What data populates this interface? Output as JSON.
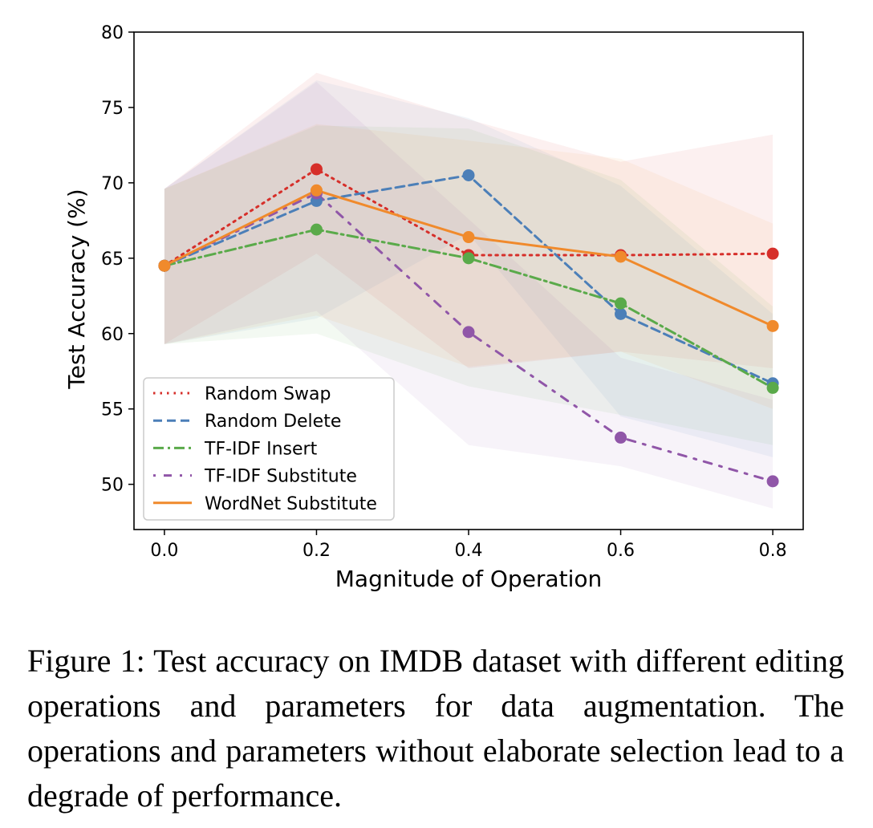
{
  "chart_data": {
    "type": "line",
    "xlabel": "Magnitude of Operation",
    "ylabel": "Test Accuracy (%)",
    "xlim": [
      -0.04,
      0.84
    ],
    "ylim": [
      47,
      80
    ],
    "x": [
      0.0,
      0.2,
      0.4,
      0.6,
      0.8
    ],
    "x_tick_labels": [
      "0.0",
      "0.2",
      "0.4",
      "0.6",
      "0.8"
    ],
    "y_ticks": [
      50,
      55,
      60,
      65,
      70,
      75,
      80
    ],
    "y_tick_labels": [
      "50",
      "55",
      "60",
      "65",
      "70",
      "75",
      "80"
    ],
    "grid": false,
    "legend_position": "lower-left",
    "series": [
      {
        "name": "Random Swap",
        "color": "#d62f2a",
        "dash": "dotted",
        "values": [
          64.5,
          70.9,
          65.2,
          65.2,
          65.3
        ],
        "upper": [
          69.6,
          77.3,
          74.2,
          71.4,
          73.2
        ],
        "lower": [
          59.3,
          65.3,
          57.7,
          58.8,
          57.7
        ]
      },
      {
        "name": "Random Delete",
        "color": "#4c7fb8",
        "dash": "dashed",
        "values": [
          64.5,
          68.8,
          70.5,
          61.3,
          56.7
        ],
        "upper": [
          69.6,
          76.8,
          74.3,
          69.8,
          61.3
        ],
        "lower": [
          59.3,
          61.0,
          66.6,
          54.5,
          51.8
        ]
      },
      {
        "name": "TF-IDF Insert",
        "color": "#5aaa4a",
        "dash": "dashdot",
        "values": [
          64.5,
          66.9,
          65.0,
          62.0,
          56.4
        ],
        "upper": [
          69.6,
          73.8,
          73.6,
          70.2,
          61.8
        ],
        "lower": [
          59.3,
          60.0,
          56.5,
          54.6,
          52.6
        ]
      },
      {
        "name": "TF-IDF Substitute",
        "color": "#9056a8",
        "dash": "loosedashdot",
        "values": [
          64.5,
          69.3,
          60.1,
          53.1,
          50.2
        ],
        "upper": [
          69.6,
          76.7,
          67.6,
          58.4,
          55.6
        ],
        "lower": [
          59.3,
          61.5,
          52.6,
          51.2,
          48.4
        ]
      },
      {
        "name": "WordNet Substitute",
        "color": "#f08a2c",
        "dash": "solid",
        "values": [
          64.5,
          69.5,
          66.4,
          65.1,
          60.5
        ],
        "upper": [
          69.6,
          73.9,
          72.8,
          71.6,
          67.3
        ],
        "lower": [
          59.3,
          61.2,
          57.8,
          58.8,
          55.0
        ]
      }
    ]
  },
  "caption": {
    "text": "Figure 1: Test accuracy on IMDB dataset with different editing operations and parameters for data augmentation. The operations and parameters without elaborate selection lead to a degrade of performance."
  }
}
